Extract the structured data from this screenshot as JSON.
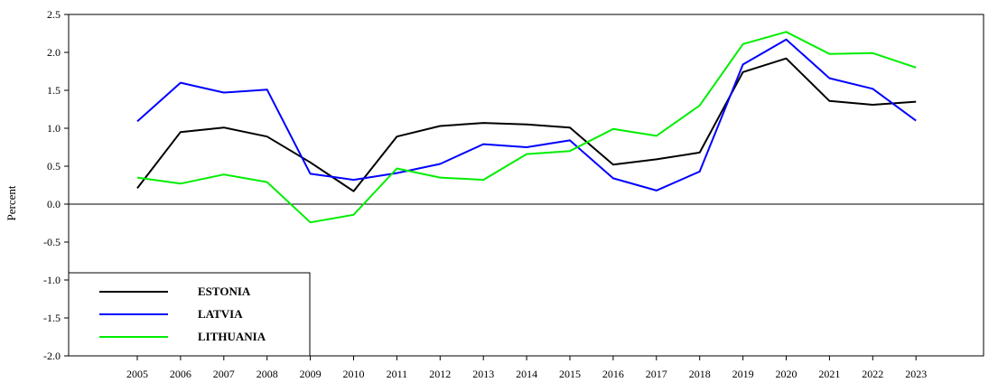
{
  "chart_data": {
    "type": "line",
    "title": "",
    "xlabel": "",
    "ylabel": "Percent",
    "ylim": [
      -2.0,
      2.5
    ],
    "yticks": [
      "-2.0",
      "-1.5",
      "-1.0",
      "-0.5",
      "0.0",
      "0.5",
      "1.0",
      "1.5",
      "2.0",
      "2.5"
    ],
    "x": [
      "2005",
      "2006",
      "2007",
      "2008",
      "2009",
      "2010",
      "2011",
      "2012",
      "2013",
      "2014",
      "2015",
      "2016",
      "2017",
      "2018",
      "2019",
      "2020",
      "2021",
      "2022",
      "2023"
    ],
    "grid": false,
    "zero_line": true,
    "legend_position": "bottom-left",
    "series": [
      {
        "name": "ESTONIA",
        "color": "#000000",
        "values": [
          0.21,
          0.95,
          1.01,
          0.89,
          0.55,
          0.17,
          0.89,
          1.03,
          1.07,
          1.05,
          1.01,
          0.52,
          0.59,
          0.68,
          1.74,
          1.92,
          1.36,
          1.31,
          1.35
        ]
      },
      {
        "name": "LATVIA",
        "color": "#0000ff",
        "values": [
          1.09,
          1.6,
          1.47,
          1.51,
          0.4,
          0.32,
          0.41,
          0.53,
          0.79,
          0.75,
          0.84,
          0.34,
          0.18,
          0.43,
          1.84,
          2.17,
          1.66,
          1.52,
          1.1
        ]
      },
      {
        "name": "LITHUANIA",
        "color": "#00ee00",
        "values": [
          0.35,
          0.27,
          0.39,
          0.29,
          -0.24,
          -0.14,
          0.47,
          0.35,
          0.32,
          0.66,
          0.7,
          0.99,
          0.9,
          1.3,
          2.11,
          2.27,
          1.98,
          1.99,
          1.8
        ]
      }
    ]
  }
}
